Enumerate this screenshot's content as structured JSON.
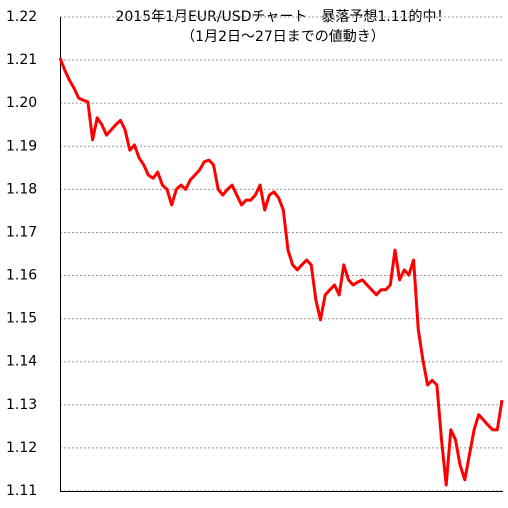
{
  "chart_data": {
    "type": "line",
    "title": "2015年1月EUR/USDチャート　暴落予想1.11的中！",
    "subtitle": "（1月2日～27日までの値動き）",
    "categories": [
      null,
      null,
      null,
      null,
      null,
      null,
      null,
      null,
      null,
      null,
      null,
      null,
      null,
      null,
      null,
      null,
      null,
      null,
      null,
      null,
      null,
      null,
      null,
      null,
      null,
      null,
      null,
      null,
      null,
      null,
      null,
      null,
      null,
      null,
      null,
      null,
      null,
      null,
      null,
      null,
      null,
      null,
      null,
      null,
      null,
      null,
      null,
      null,
      null,
      null,
      null,
      null,
      null,
      null,
      null,
      null,
      null,
      null,
      null,
      null,
      null,
      null,
      null,
      null,
      null,
      null,
      null,
      null,
      null,
      null,
      null,
      null,
      null,
      null,
      null,
      null,
      null,
      null,
      null,
      null,
      null,
      null,
      null,
      null,
      null,
      null,
      null,
      null,
      null,
      null,
      null,
      null,
      null,
      null,
      null,
      null
    ],
    "series": [
      {
        "name": "EUR/USD",
        "color": "#ff0000",
        "values": [
          1.2105,
          1.2077,
          1.2054,
          1.2035,
          1.2012,
          1.2007,
          1.2003,
          1.1915,
          1.1966,
          1.195,
          1.1926,
          1.1938,
          1.195,
          1.196,
          1.1938,
          1.1891,
          1.1903,
          1.1873,
          1.1857,
          1.1833,
          1.1826,
          1.184,
          1.181,
          1.18,
          1.1764,
          1.18,
          1.181,
          1.18,
          1.1822,
          1.1833,
          1.1845,
          1.1864,
          1.1868,
          1.1857,
          1.18,
          1.1787,
          1.18,
          1.181,
          1.1787,
          1.1764,
          1.1775,
          1.1775,
          1.1787,
          1.181,
          1.1752,
          1.1787,
          1.1794,
          1.178,
          1.1752,
          1.1659,
          1.1625,
          1.1613,
          1.1625,
          1.1636,
          1.1625,
          1.1543,
          1.1497,
          1.1555,
          1.1567,
          1.1578,
          1.1555,
          1.1625,
          1.159,
          1.1578,
          1.1585,
          1.159,
          1.1578,
          1.1567,
          1.1555,
          1.1567,
          1.1567,
          1.1578,
          1.1659,
          1.159,
          1.1613,
          1.1601,
          1.1636,
          1.1474,
          1.1404,
          1.1346,
          1.1357,
          1.1346,
          1.1219,
          1.1114,
          1.1242,
          1.1219,
          1.116,
          1.1126,
          1.1184,
          1.1242,
          1.1277,
          1.1265,
          1.1253,
          1.1242,
          1.1242,
          1.1311
        ]
      }
    ],
    "ylim": [
      1.11,
      1.22
    ],
    "yticks": [
      1.11,
      1.12,
      1.13,
      1.14,
      1.15,
      1.16,
      1.17,
      1.18,
      1.19,
      {
        "value": 1.2,
        "label": "1.20"
      },
      1.21,
      1.22
    ],
    "grid": true
  }
}
